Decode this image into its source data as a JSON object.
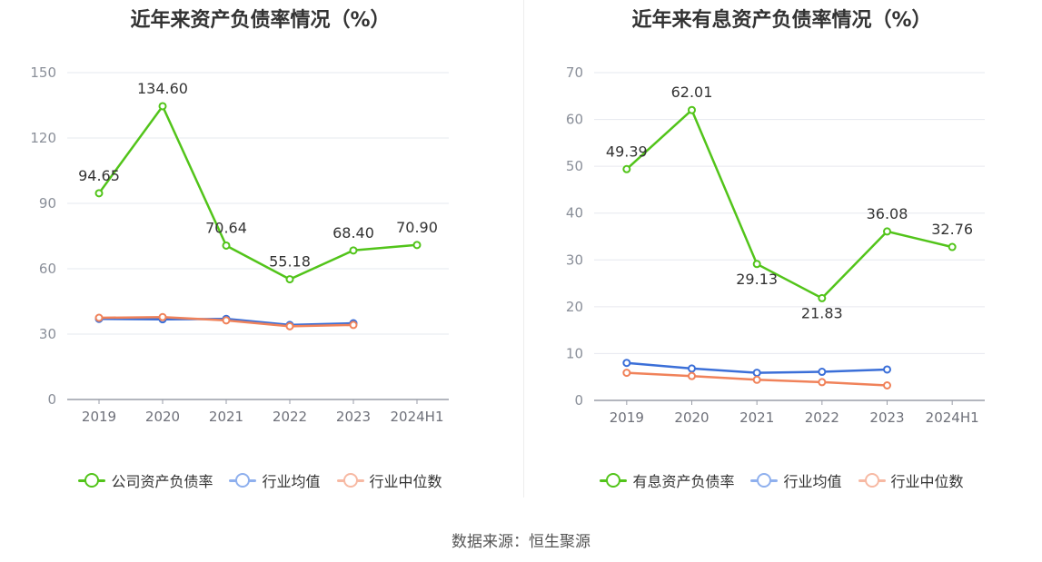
{
  "chart_data": [
    {
      "type": "line",
      "title": "近年来资产负债率情况（%）",
      "categories": [
        "2019",
        "2020",
        "2021",
        "2022",
        "2023",
        "2024H1"
      ],
      "ylim": [
        0,
        150
      ],
      "yticks": [
        0,
        30,
        60,
        90,
        120,
        150
      ],
      "grid": true,
      "legend_position": "bottom",
      "series": [
        {
          "name": "公司资产负债率",
          "color": "#52c41a",
          "values": [
            94.65,
            134.6,
            70.64,
            55.18,
            68.4,
            70.9
          ],
          "labels": [
            "94.65",
            "134.60",
            "70.64",
            "55.18",
            "68.40",
            "70.90"
          ]
        },
        {
          "name": "行业均值",
          "color": "#3b6fd8",
          "values": [
            37.0,
            36.8,
            37.0,
            34.2,
            35.0,
            null
          ]
        },
        {
          "name": "行业中位数",
          "color": "#f0825a",
          "values": [
            37.5,
            37.8,
            36.3,
            33.6,
            34.2,
            null
          ]
        }
      ]
    },
    {
      "type": "line",
      "title": "近年来有息资产负债率情况（%）",
      "categories": [
        "2019",
        "2020",
        "2021",
        "2022",
        "2023",
        "2024H1"
      ],
      "ylim": [
        0,
        70
      ],
      "yticks": [
        0,
        10,
        20,
        30,
        40,
        50,
        60,
        70
      ],
      "grid": true,
      "legend_position": "bottom",
      "series": [
        {
          "name": "有息资产负债率",
          "color": "#52c41a",
          "values": [
            49.39,
            62.01,
            29.13,
            21.83,
            36.08,
            32.76
          ],
          "labels": [
            "49.39",
            "62.01",
            "29.13",
            "21.83",
            "36.08",
            "32.76"
          ]
        },
        {
          "name": "行业均值",
          "color": "#3b6fd8",
          "values": [
            8.0,
            6.8,
            5.9,
            6.1,
            6.6,
            null
          ]
        },
        {
          "name": "行业中位数",
          "color": "#f0825a",
          "values": [
            5.9,
            5.2,
            4.4,
            3.9,
            3.2,
            null
          ]
        }
      ]
    }
  ],
  "legend_colors": {
    "company": "#52c41a",
    "avg": "#8fb0ee",
    "median": "#f7b9a3"
  },
  "source": "数据来源：恒生聚源"
}
